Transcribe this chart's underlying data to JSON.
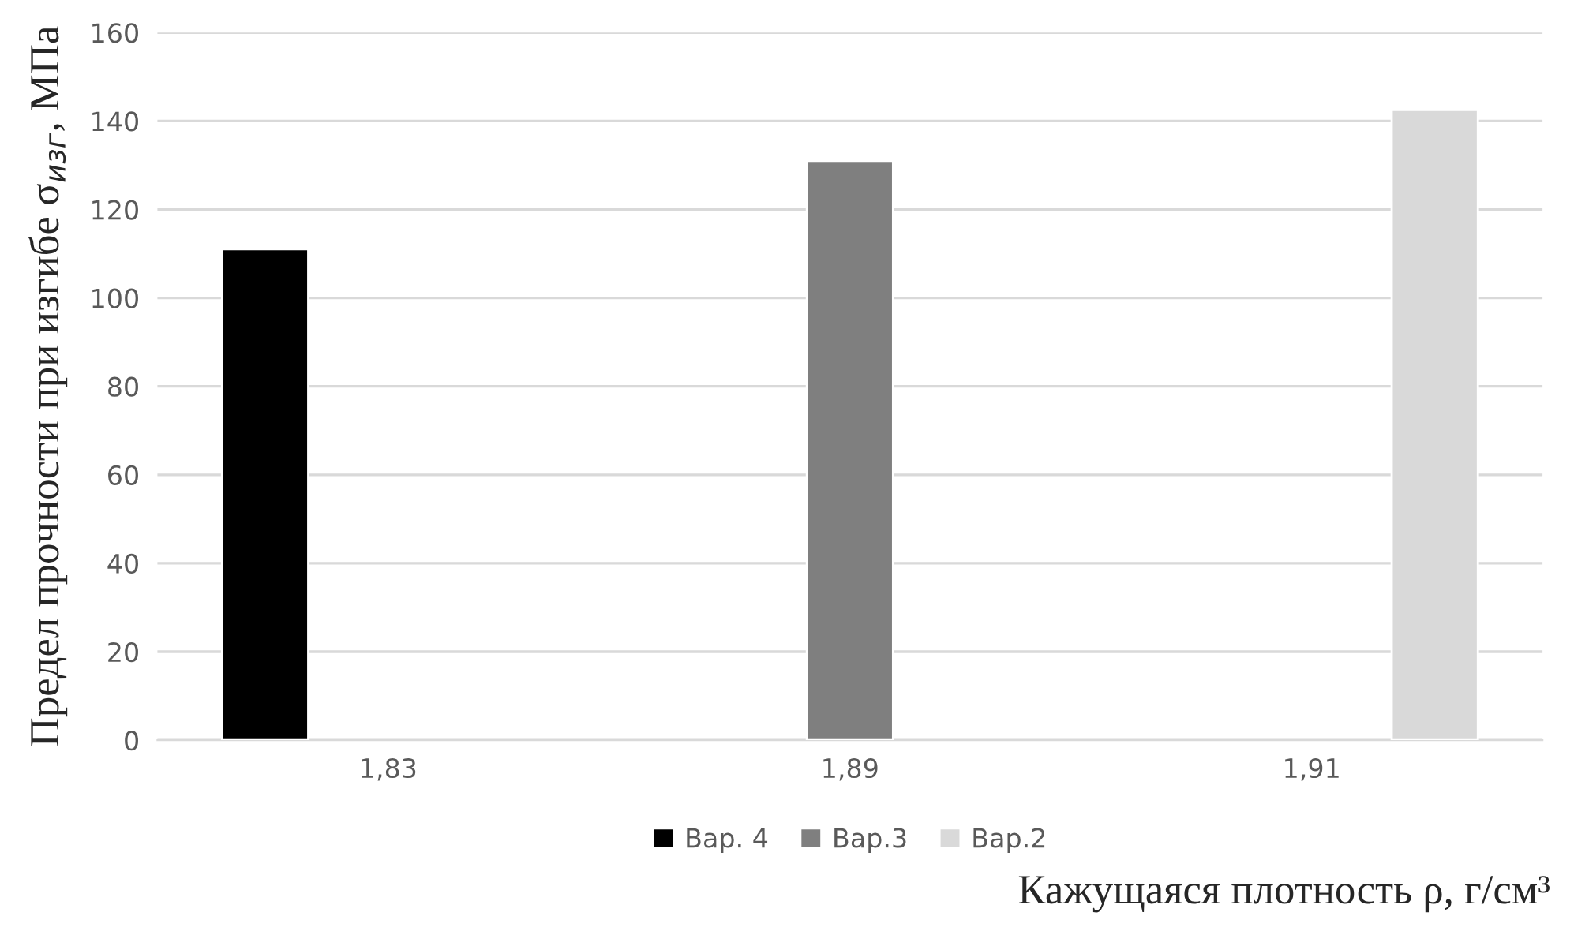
{
  "chart_data": {
    "type": "bar",
    "categories": [
      "1,83",
      "1,89",
      "1,91"
    ],
    "series": [
      {
        "name": "Вар. 4",
        "color": "#000000",
        "values": [
          111,
          null,
          null
        ]
      },
      {
        "name": "Вар.3",
        "color": "#7f7f7f",
        "values": [
          null,
          131,
          null
        ]
      },
      {
        "name": "Вар.2",
        "color": "#d9d9d9",
        "values": [
          null,
          null,
          142.5
        ]
      }
    ],
    "xlabel": "Кажущаяся плотность ρ, г/см³",
    "ylabel": "Предел прочности при изгибе σ$_{изг}$, МПа",
    "ylim": [
      0,
      160
    ],
    "yticks": [
      0,
      20,
      40,
      60,
      80,
      100,
      120,
      140,
      160
    ],
    "grid": "y",
    "legend": "bottom"
  }
}
